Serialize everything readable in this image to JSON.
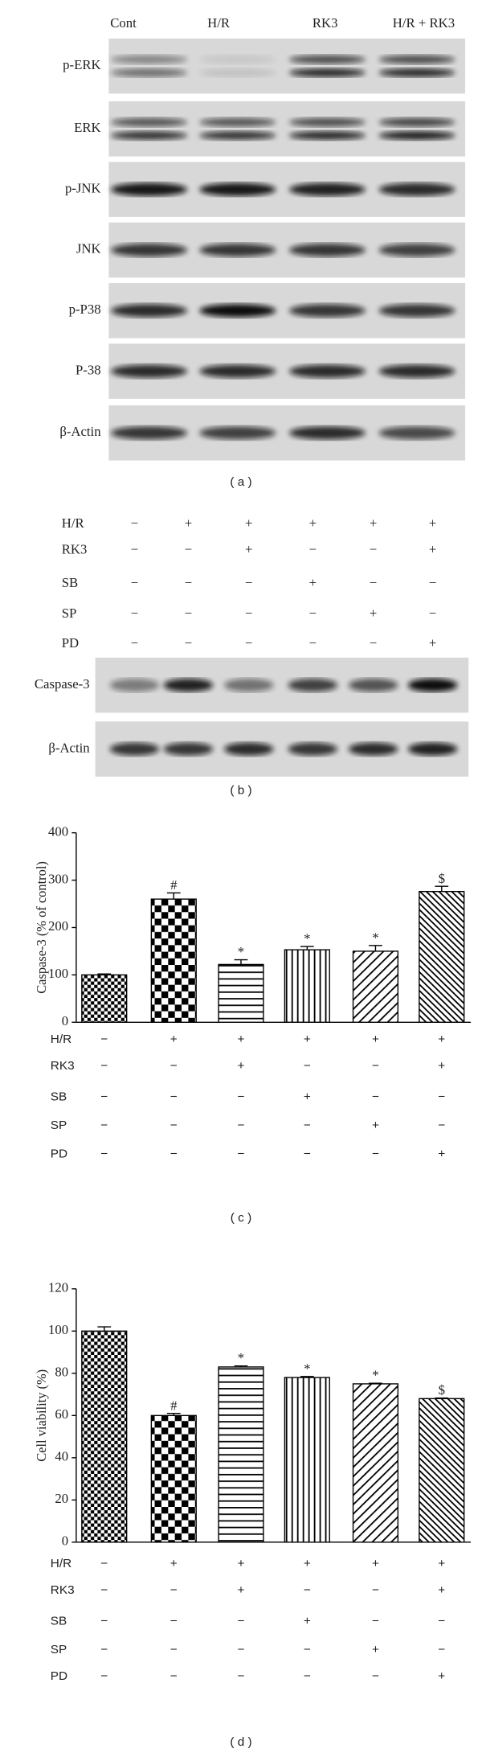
{
  "panel_a": {
    "columns": [
      "Cont",
      "H/R",
      "RK3",
      "H/R + RK3"
    ],
    "rows": [
      "p-ERK",
      "ERK",
      "p-JNK",
      "JNK",
      "p-P38",
      "P-38",
      "β-Actin"
    ],
    "caption": "( a )"
  },
  "panel_b": {
    "rows": [
      {
        "label": "H/R",
        "signs": [
          "−",
          "+",
          "+",
          "+",
          "+",
          "+"
        ]
      },
      {
        "label": "RK3",
        "signs": [
          "−",
          "−",
          "+",
          "−",
          "−",
          "+"
        ]
      },
      {
        "label": "SB",
        "signs": [
          "−",
          "−",
          "−",
          "+",
          "−",
          "−"
        ]
      },
      {
        "label": "SP",
        "signs": [
          "−",
          "−",
          "−",
          "−",
          "+",
          "−"
        ]
      },
      {
        "label": "PD",
        "signs": [
          "−",
          "−",
          "−",
          "−",
          "−",
          "+"
        ]
      }
    ],
    "blots": [
      "Caspase-3",
      "β-Actin"
    ],
    "caption": "( b )"
  },
  "chart_data": [
    {
      "type": "bar",
      "ylabel": "Caspase-3 (% of control)",
      "values": [
        100,
        260,
        122,
        153,
        150,
        276
      ],
      "errors": [
        2,
        13,
        10,
        7,
        12,
        11
      ],
      "annotations": [
        null,
        "#",
        "*",
        "*",
        "*",
        "$"
      ],
      "ylim": [
        0,
        400
      ],
      "yticks": [
        0,
        100,
        200,
        300,
        400
      ],
      "color": "#000000",
      "conditions": [
        {
          "label": "H/R",
          "signs": [
            "−",
            "+",
            "+",
            "+",
            "+",
            "+"
          ]
        },
        {
          "label": "RK3",
          "signs": [
            "−",
            "−",
            "+",
            "−",
            "−",
            "+"
          ]
        },
        {
          "label": "SB",
          "signs": [
            "−",
            "−",
            "−",
            "+",
            "−",
            "−"
          ]
        },
        {
          "label": "SP",
          "signs": [
            "−",
            "−",
            "−",
            "−",
            "+",
            "−"
          ]
        },
        {
          "label": "PD",
          "signs": [
            "−",
            "−",
            "−",
            "−",
            "−",
            "+"
          ]
        }
      ],
      "caption": "( c )"
    },
    {
      "type": "bar",
      "ylabel": "Cell viability (%)",
      "values": [
        100,
        60,
        83,
        78,
        75,
        68
      ],
      "errors": [
        2,
        1,
        0.5,
        0.5,
        0.3,
        0.3
      ],
      "annotations": [
        null,
        "#",
        "*",
        "*",
        "*",
        "$"
      ],
      "ylim": [
        0,
        120
      ],
      "yticks": [
        0,
        20,
        40,
        60,
        80,
        100,
        120
      ],
      "color": "#000000",
      "conditions": [
        {
          "label": "H/R",
          "signs": [
            "−",
            "+",
            "+",
            "+",
            "+",
            "+"
          ]
        },
        {
          "label": "RK3",
          "signs": [
            "−",
            "−",
            "+",
            "−",
            "−",
            "+"
          ]
        },
        {
          "label": "SB",
          "signs": [
            "−",
            "−",
            "−",
            "+",
            "−",
            "−"
          ]
        },
        {
          "label": "SP",
          "signs": [
            "−",
            "−",
            "−",
            "−",
            "+",
            "−"
          ]
        },
        {
          "label": "PD",
          "signs": [
            "−",
            "−",
            "−",
            "−",
            "−",
            "+"
          ]
        }
      ],
      "caption": "( d )"
    }
  ]
}
